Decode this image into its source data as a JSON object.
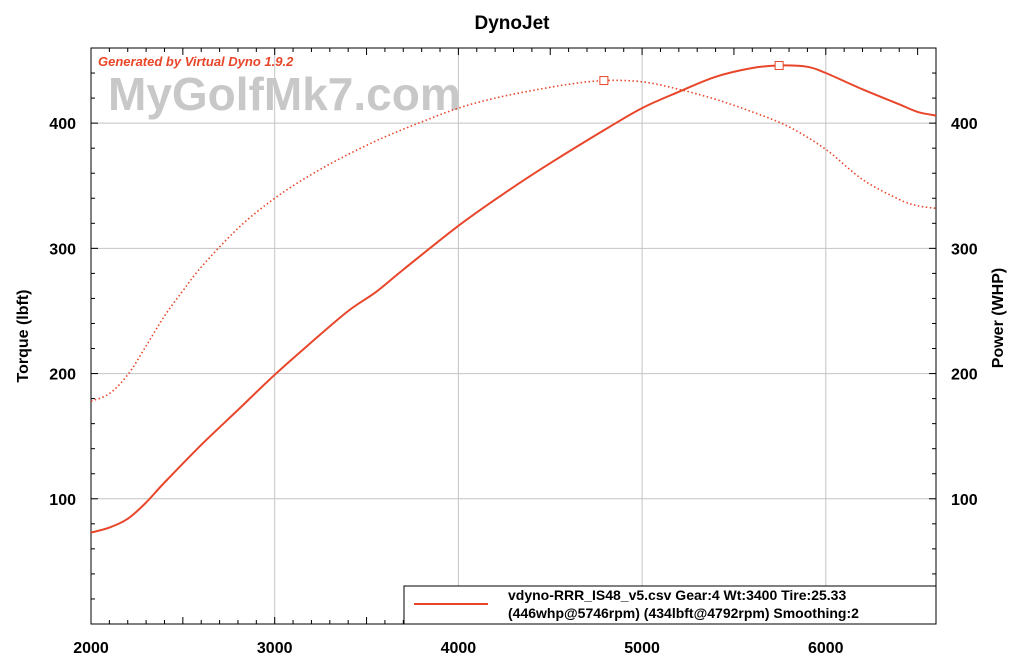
{
  "chart_data": {
    "type": "line",
    "title": "DynoJet",
    "generated_by": "Generated by Virtual Dyno 1.9.2",
    "watermark": "MyGolfMk7.com",
    "ylabel_left": "Torque (lbft)",
    "ylabel_right": "Power (WHP)",
    "xlim": [
      2000,
      6600
    ],
    "ylim": [
      0,
      460
    ],
    "x_ticks": [
      2000,
      3000,
      4000,
      5000,
      6000
    ],
    "x_tick_labels": [
      "2000",
      "3000",
      "4000",
      "5000",
      "6000"
    ],
    "y_ticks": [
      100,
      200,
      300,
      400
    ],
    "y_tick_labels": [
      "100",
      "200",
      "300",
      "400"
    ],
    "grid": true,
    "color": "#e8462a",
    "series": [
      {
        "style": "solid",
        "x": [
          2000,
          2100,
          2200,
          2300,
          2400,
          2600,
          2800,
          3000,
          3200,
          3400,
          3550,
          3700,
          4000,
          4250,
          4500,
          4800,
          5000,
          5200,
          5400,
          5600,
          5746,
          5900,
          6000,
          6200,
          6400,
          6500,
          6600
        ],
        "y": [
          73,
          77,
          84,
          97,
          113,
          143,
          171,
          199,
          225,
          250,
          265,
          283,
          318,
          344,
          368,
          395,
          412,
          425,
          437,
          444,
          446,
          445,
          440,
          427,
          415,
          409,
          406
        ]
      },
      {
        "style": "dotted",
        "x": [
          2000,
          2100,
          2200,
          2300,
          2400,
          2500,
          2600,
          2800,
          3000,
          3200,
          3400,
          3600,
          3800,
          4000,
          4200,
          4400,
          4600,
          4792,
          5000,
          5200,
          5400,
          5600,
          5800,
          6000,
          6200,
          6400,
          6500,
          6600
        ],
        "y": [
          178,
          184,
          199,
          222,
          246,
          266,
          285,
          316,
          340,
          359,
          375,
          389,
          401,
          412,
          420,
          426,
          431,
          434,
          433,
          427,
          419,
          409,
          397,
          379,
          355,
          339,
          334,
          332
        ]
      }
    ],
    "markers": [
      {
        "x": 4792,
        "y": 434
      },
      {
        "x": 5746,
        "y": 446
      }
    ],
    "legend": {
      "placement": "bottom-right",
      "line1": "vdyno-RRR_IS48_v5.csv Gear:4 Wt:3400 Tire:25.33",
      "line2": "(446whp@5746rpm) (434lbft@4792rpm) Smoothing:2"
    }
  }
}
